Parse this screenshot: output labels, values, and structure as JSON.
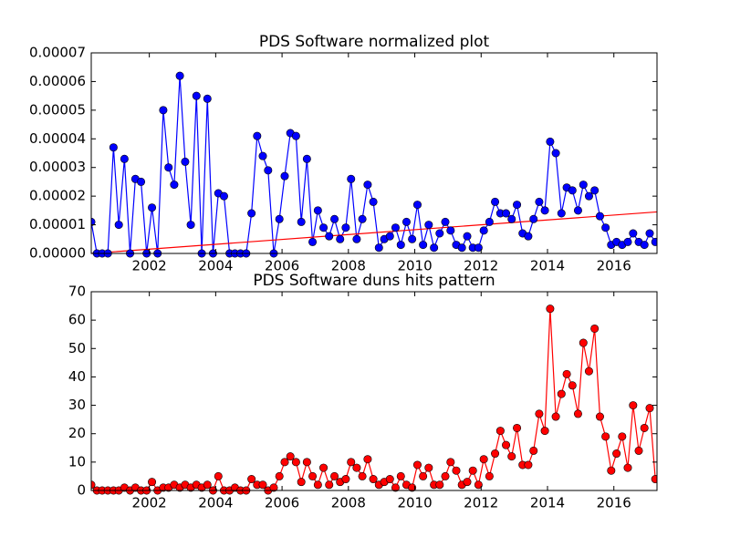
{
  "chart_data": [
    {
      "type": "line",
      "title": "PDS Software normalized plot",
      "color": "#0000ff",
      "marker_edge": "#000000",
      "x": [
        2000.25,
        2000.42,
        2000.58,
        2000.75,
        2000.92,
        2001.08,
        2001.25,
        2001.42,
        2001.58,
        2001.75,
        2001.92,
        2002.08,
        2002.25,
        2002.42,
        2002.58,
        2002.75,
        2002.92,
        2003.08,
        2003.25,
        2003.42,
        2003.58,
        2003.75,
        2003.92,
        2004.08,
        2004.25,
        2004.42,
        2004.58,
        2004.75,
        2004.92,
        2005.08,
        2005.25,
        2005.42,
        2005.58,
        2005.75,
        2005.92,
        2006.08,
        2006.25,
        2006.42,
        2006.58,
        2006.75,
        2006.92,
        2007.08,
        2007.25,
        2007.42,
        2007.58,
        2007.75,
        2007.92,
        2008.08,
        2008.25,
        2008.42,
        2008.58,
        2008.75,
        2008.92,
        2009.08,
        2009.25,
        2009.42,
        2009.58,
        2009.75,
        2009.92,
        2010.08,
        2010.25,
        2010.42,
        2010.58,
        2010.75,
        2010.92,
        2011.08,
        2011.25,
        2011.42,
        2011.58,
        2011.75,
        2011.92,
        2012.08,
        2012.25,
        2012.42,
        2012.58,
        2012.75,
        2012.92,
        2013.08,
        2013.25,
        2013.42,
        2013.58,
        2013.75,
        2013.92,
        2014.08,
        2014.25,
        2014.42,
        2014.58,
        2014.75,
        2014.92,
        2015.08,
        2015.25,
        2015.42,
        2015.58,
        2015.75,
        2015.92,
        2016.08,
        2016.25,
        2016.42,
        2016.58,
        2016.75,
        2016.92,
        2017.08,
        2017.25
      ],
      "values": [
        1.1e-05,
        0,
        0,
        0,
        3.7e-05,
        1e-05,
        3.3e-05,
        0,
        2.6e-05,
        2.5e-05,
        0,
        1.6e-05,
        0,
        5e-05,
        3e-05,
        2.4e-05,
        6.2e-05,
        3.2e-05,
        1e-05,
        5.5e-05,
        0,
        5.4e-05,
        0,
        2.1e-05,
        2e-05,
        0,
        0,
        0,
        0,
        1.4e-05,
        4.1e-05,
        3.4e-05,
        2.9e-05,
        0,
        1.2e-05,
        2.7e-05,
        4.2e-05,
        4.1e-05,
        1.1e-05,
        3.3e-05,
        4e-06,
        1.5e-05,
        9e-06,
        6e-06,
        1.2e-05,
        5e-06,
        9e-06,
        2.6e-05,
        5e-06,
        1.2e-05,
        2.4e-05,
        1.8e-05,
        2e-06,
        5e-06,
        6e-06,
        9e-06,
        3e-06,
        1.1e-05,
        5e-06,
        1.7e-05,
        3e-06,
        1e-05,
        2e-06,
        7e-06,
        1.1e-05,
        8e-06,
        3e-06,
        2e-06,
        6e-06,
        2e-06,
        2e-06,
        8e-06,
        1.1e-05,
        1.8e-05,
        1.4e-05,
        1.4e-05,
        1.2e-05,
        1.7e-05,
        7e-06,
        6e-06,
        1.2e-05,
        1.8e-05,
        1.5e-05,
        3.9e-05,
        3.5e-05,
        1.4e-05,
        2.3e-05,
        2.2e-05,
        1.5e-05,
        2.4e-05,
        2e-05,
        2.2e-05,
        1.3e-05,
        9e-06,
        3e-06,
        4e-06,
        3e-06,
        4e-06,
        7e-06,
        4e-06,
        3e-06,
        7e-06,
        4e-06
      ],
      "trendline": {
        "x": [
          2000.25,
          2017.3
        ],
        "values": [
          0,
          1.45e-05
        ],
        "color": "#ff0000"
      },
      "xlim": [
        2000.25,
        2017.3
      ],
      "xticks": [
        2002,
        2004,
        2006,
        2008,
        2010,
        2012,
        2014,
        2016
      ],
      "ylim": [
        0,
        7e-05
      ],
      "yticks": [
        {
          "value": 0,
          "label": "0.00000"
        },
        {
          "value": 1e-05,
          "label": "0.00001"
        },
        {
          "value": 2e-05,
          "label": "0.00002"
        },
        {
          "value": 3e-05,
          "label": "0.00003"
        },
        {
          "value": 4e-05,
          "label": "0.00004"
        },
        {
          "value": 5e-05,
          "label": "0.00005"
        },
        {
          "value": 6e-05,
          "label": "0.00006"
        },
        {
          "value": 7e-05,
          "label": "0.00007"
        }
      ]
    },
    {
      "type": "line",
      "title": "PDS Software duns hits pattern",
      "color": "#ff0000",
      "marker_edge": "#000000",
      "x": [
        2000.25,
        2000.42,
        2000.58,
        2000.75,
        2000.92,
        2001.08,
        2001.25,
        2001.42,
        2001.58,
        2001.75,
        2001.92,
        2002.08,
        2002.25,
        2002.42,
        2002.58,
        2002.75,
        2002.92,
        2003.08,
        2003.25,
        2003.42,
        2003.58,
        2003.75,
        2003.92,
        2004.08,
        2004.25,
        2004.42,
        2004.58,
        2004.75,
        2004.92,
        2005.08,
        2005.25,
        2005.42,
        2005.58,
        2005.75,
        2005.92,
        2006.08,
        2006.25,
        2006.42,
        2006.58,
        2006.75,
        2006.92,
        2007.08,
        2007.25,
        2007.42,
        2007.58,
        2007.75,
        2007.92,
        2008.08,
        2008.25,
        2008.42,
        2008.58,
        2008.75,
        2008.92,
        2009.08,
        2009.25,
        2009.42,
        2009.58,
        2009.75,
        2009.92,
        2010.08,
        2010.25,
        2010.42,
        2010.58,
        2010.75,
        2010.92,
        2011.08,
        2011.25,
        2011.42,
        2011.58,
        2011.75,
        2011.92,
        2012.08,
        2012.25,
        2012.42,
        2012.58,
        2012.75,
        2012.92,
        2013.08,
        2013.25,
        2013.42,
        2013.58,
        2013.75,
        2013.92,
        2014.08,
        2014.25,
        2014.42,
        2014.58,
        2014.75,
        2014.92,
        2015.08,
        2015.25,
        2015.42,
        2015.58,
        2015.75,
        2015.92,
        2016.08,
        2016.25,
        2016.42,
        2016.58,
        2016.75,
        2016.92,
        2017.08,
        2017.25
      ],
      "values": [
        2,
        0,
        0,
        0,
        0,
        0,
        1,
        0,
        1,
        0,
        0,
        3,
        0,
        1,
        1,
        2,
        1,
        2,
        1,
        2,
        1,
        2,
        0,
        5,
        0,
        0,
        1,
        0,
        0,
        4,
        2,
        2,
        0,
        1,
        5,
        10,
        12,
        10,
        3,
        10,
        5,
        2,
        8,
        2,
        5,
        3,
        4,
        10,
        8,
        5,
        11,
        4,
        2,
        3,
        4,
        1,
        5,
        2,
        1,
        9,
        5,
        8,
        2,
        2,
        5,
        10,
        7,
        2,
        3,
        7,
        2,
        11,
        5,
        13,
        21,
        16,
        12,
        22,
        9,
        9,
        14,
        27,
        21,
        64,
        26,
        34,
        41,
        37,
        27,
        52,
        42,
        57,
        26,
        19,
        7,
        13,
        19,
        8,
        30,
        14,
        22,
        29,
        4
      ],
      "xlim": [
        2000.25,
        2017.3
      ],
      "xticks": [
        2002,
        2004,
        2006,
        2008,
        2010,
        2012,
        2014,
        2016
      ],
      "ylim": [
        0,
        70
      ],
      "yticks": [
        0,
        10,
        20,
        30,
        40,
        50,
        60,
        70
      ]
    }
  ]
}
